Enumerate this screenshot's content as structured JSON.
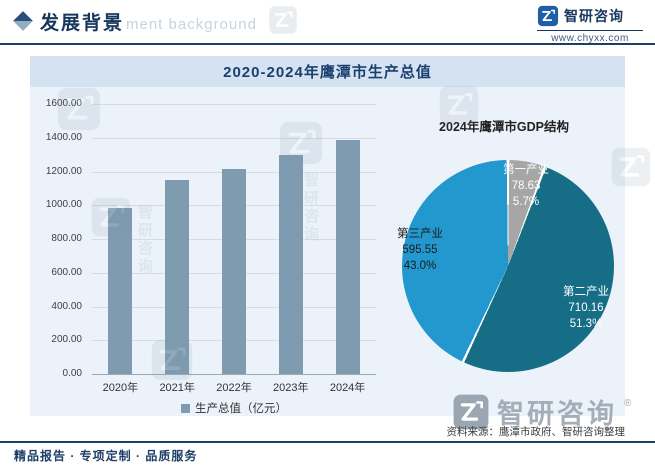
{
  "header": {
    "title": "发展背景",
    "bg_watermark": "ment background",
    "brand": {
      "name": "智研咨询",
      "url": "www.chyxx.com"
    }
  },
  "chart_data": [
    {
      "type": "bar",
      "title": "2020-2024年鹰潭市生产总值",
      "categories": [
        "2020年",
        "2021年",
        "2022年",
        "2023年",
        "2024年"
      ],
      "values": [
        985,
        1150,
        1215,
        1300,
        1384
      ],
      "ylim": [
        0,
        1600
      ],
      "ytick_step": 200,
      "ytick_labels": [
        "0.00",
        "200.00",
        "400.00",
        "600.00",
        "800.00",
        "1000.00",
        "1200.00",
        "1400.00",
        "1600.00"
      ],
      "legend": "生产总值（亿元）",
      "legend_position": "bottom",
      "grid": true,
      "bar_color": "#7E9BB0"
    },
    {
      "type": "pie",
      "title": "2024年鹰潭市GDP结构",
      "slices": [
        {
          "label": "第一产业",
          "value": 78.63,
          "value_label": "78.63",
          "pct_label": "5.7%",
          "color": "#A6A6A6",
          "text_color": "#FFFFFF"
        },
        {
          "label": "第二产业",
          "value": 710.16,
          "value_label": "710.16",
          "pct_label": "51.3%",
          "color": "#156E86",
          "text_color": "#FFFFFF"
        },
        {
          "label": "第三产业",
          "value": 595.55,
          "value_label": "595.55",
          "pct_label": "43.0%",
          "color": "#2298CE",
          "text_color": "#1A1A1A"
        }
      ]
    }
  ],
  "source_note": "资料来源：鹰潭市政府、智研咨询整理",
  "footer_services": "精品报告 · 专项定制 · 品质服务",
  "watermark": {
    "brand": "智研咨询",
    "reg": "®"
  }
}
